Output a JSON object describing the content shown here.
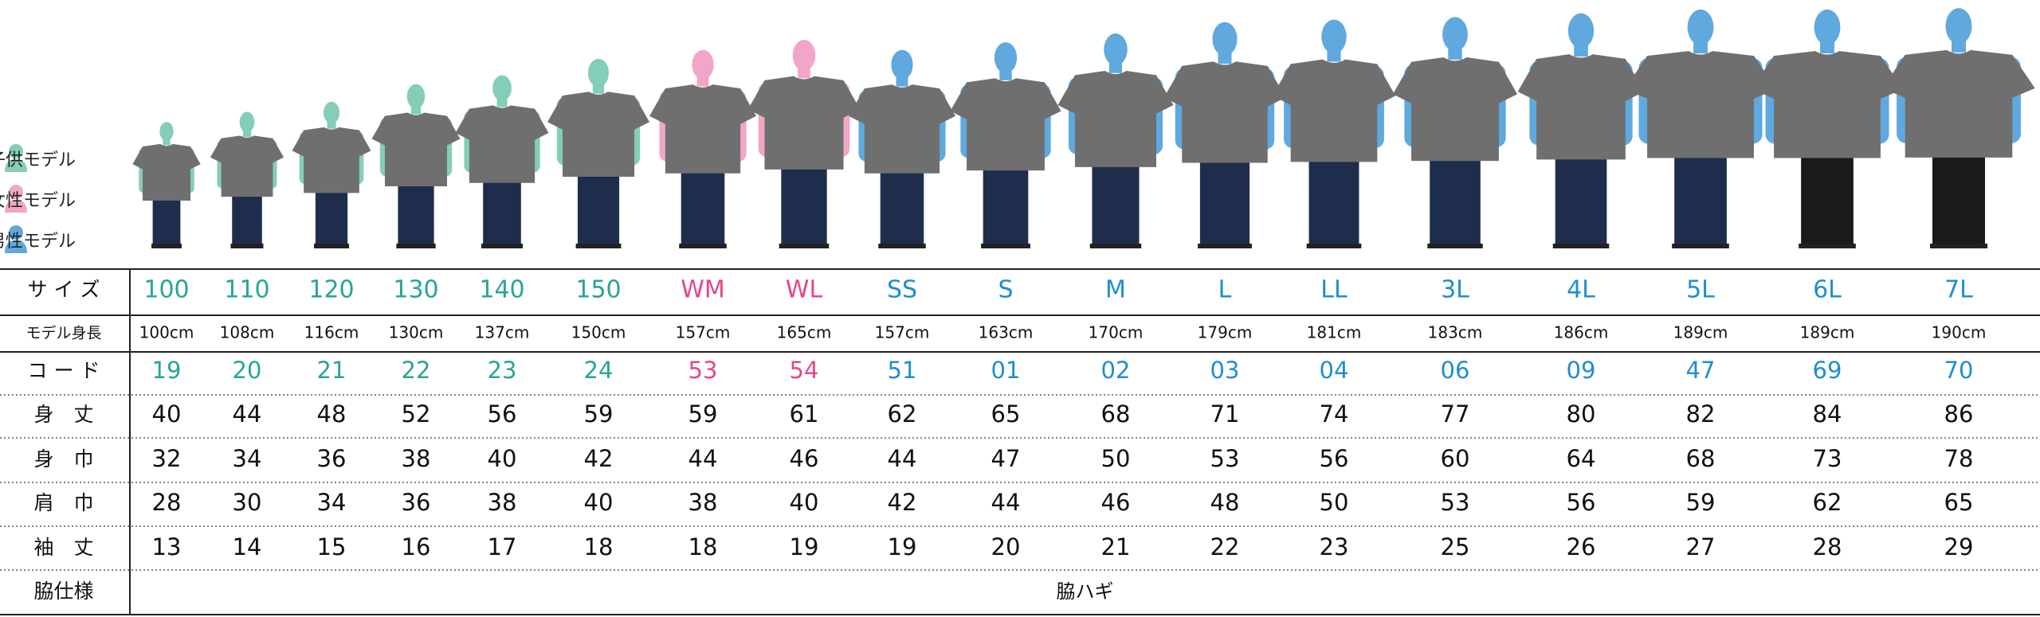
{
  "row_headers": [
    "サ イ ズ",
    "モデル身長",
    "コ ー ド",
    "身　丈",
    "身　巾",
    "肩　巾",
    "袖　丈",
    "脇仕様"
  ],
  "groups": [
    {
      "label": "子供モデル",
      "color": "#27a596",
      "figure_color": "#84cdb9",
      "columns": [
        {
          "size": "100",
          "height": "100cm",
          "code": "19",
          "values": [
            40,
            32,
            28,
            13
          ]
        },
        {
          "size": "110",
          "height": "108cm",
          "code": "20",
          "values": [
            44,
            34,
            30,
            14
          ]
        },
        {
          "size": "120",
          "height": "116cm",
          "code": "21",
          "values": [
            48,
            36,
            34,
            15
          ]
        },
        {
          "size": "130",
          "height": "130cm",
          "code": "22",
          "values": [
            52,
            38,
            36,
            16
          ]
        },
        {
          "size": "140",
          "height": "137cm",
          "code": "23",
          "values": [
            56,
            40,
            38,
            17
          ]
        },
        {
          "size": "150",
          "height": "150cm",
          "code": "24",
          "values": [
            59,
            42,
            40,
            18
          ]
        }
      ]
    },
    {
      "label": "女性モデル",
      "color": "#e5468a",
      "figure_color": "#f2a6c7",
      "columns": [
        {
          "size": "WM",
          "height": "157cm",
          "code": "53",
          "values": [
            59,
            44,
            38,
            18
          ]
        },
        {
          "size": "WL",
          "height": "165cm",
          "code": "54",
          "values": [
            61,
            46,
            40,
            19
          ]
        }
      ]
    },
    {
      "label": "男性モデル",
      "color": "#1f8ed0",
      "figure_color": "#5fa9de",
      "columns": [
        {
          "size": "SS",
          "height": "157cm",
          "code": "51",
          "values": [
            62,
            44,
            42,
            19
          ]
        },
        {
          "size": "S",
          "height": "163cm",
          "code": "01",
          "values": [
            65,
            47,
            44,
            20
          ]
        },
        {
          "size": "M",
          "height": "170cm",
          "code": "02",
          "values": [
            68,
            50,
            46,
            21
          ]
        },
        {
          "size": "L",
          "height": "179cm",
          "code": "03",
          "values": [
            71,
            53,
            48,
            22
          ]
        },
        {
          "size": "LL",
          "height": "181cm",
          "code": "04",
          "values": [
            74,
            56,
            50,
            23
          ]
        },
        {
          "size": "3L",
          "height": "183cm",
          "code": "06",
          "values": [
            77,
            60,
            53,
            25
          ]
        },
        {
          "size": "4L",
          "height": "186cm",
          "code": "09",
          "values": [
            80,
            64,
            56,
            26
          ]
        },
        {
          "size": "5L",
          "height": "189cm",
          "code": "47",
          "values": [
            82,
            68,
            59,
            27
          ]
        },
        {
          "size": "6L",
          "height": "189cm",
          "code": "69",
          "values": [
            84,
            73,
            62,
            28
          ]
        },
        {
          "size": "7L",
          "height": "190cm",
          "code": "70",
          "values": [
            86,
            78,
            65,
            29
          ]
        }
      ]
    }
  ],
  "side_spec": "脇ハギ"
}
